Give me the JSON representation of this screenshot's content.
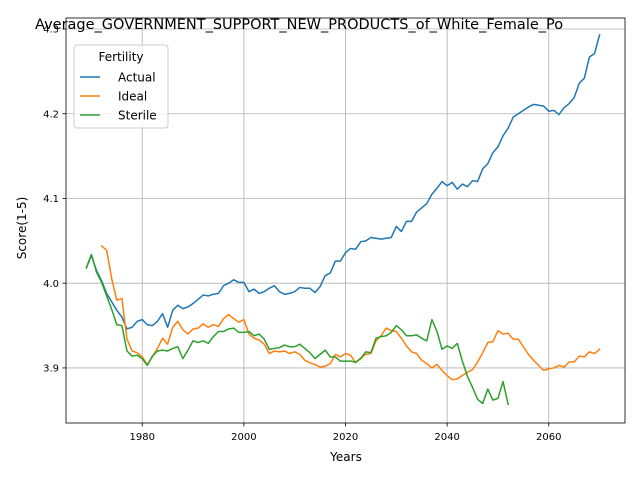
{
  "chart_data": {
    "type": "line",
    "title": "Average_GOVERNMENT_SUPPORT_NEW_PRODUCTS_of_White_Female_Po",
    "xlabel": "Years",
    "ylabel": "Score(1-5)",
    "xlim": [
      1965,
      2075
    ],
    "ylim": [
      3.835,
      4.313
    ],
    "x_ticks": [
      1980,
      2000,
      2020,
      2040,
      2060
    ],
    "y_ticks": [
      3.9,
      4.0,
      4.1,
      4.2,
      4.3
    ],
    "x_tick_labels": [
      "1980",
      "2000",
      "2020",
      "2040",
      "2060"
    ],
    "y_tick_labels": [
      "3.9",
      "4.0",
      "4.1",
      "4.2",
      "4.3"
    ],
    "grid": true,
    "legend": {
      "title": "Fertility",
      "placement": "top-left"
    },
    "series": [
      {
        "name": "Actual",
        "color": "#1f77b4",
        "points": [
          [
            1969,
            4.018
          ],
          [
            1970,
            4.033
          ],
          [
            1971,
            4.015
          ],
          [
            1972,
            4.003
          ],
          [
            1973,
            3.988
          ],
          [
            1974,
            3.978
          ],
          [
            1975,
            3.968
          ],
          [
            1976,
            3.96
          ],
          [
            1977,
            3.946
          ],
          [
            1978,
            3.948
          ],
          [
            1979,
            3.955
          ],
          [
            1980,
            3.957
          ],
          [
            1981,
            3.951
          ],
          [
            1982,
            3.95
          ],
          [
            1983,
            3.955
          ],
          [
            1984,
            3.964
          ],
          [
            1985,
            3.948
          ],
          [
            1986,
            3.968
          ],
          [
            1987,
            3.974
          ],
          [
            1988,
            3.97
          ],
          [
            1989,
            3.972
          ],
          [
            1990,
            3.976
          ],
          [
            1991,
            3.981
          ],
          [
            1992,
            3.986
          ],
          [
            1993,
            3.985
          ],
          [
            1994,
            3.987
          ],
          [
            1995,
            3.988
          ],
          [
            1996,
            3.997
          ],
          [
            1997,
            4.0
          ],
          [
            1998,
            4.004
          ],
          [
            1999,
            4.001
          ],
          [
            2000,
            4.001
          ],
          [
            2001,
            3.99
          ],
          [
            2002,
            3.993
          ],
          [
            2003,
            3.988
          ],
          [
            2004,
            3.99
          ],
          [
            2005,
            3.994
          ],
          [
            2006,
            3.997
          ],
          [
            2007,
            3.99
          ],
          [
            2008,
            3.987
          ],
          [
            2009,
            3.988
          ],
          [
            2010,
            3.99
          ],
          [
            2011,
            3.995
          ],
          [
            2012,
            3.994
          ],
          [
            2013,
            3.994
          ],
          [
            2014,
            3.989
          ],
          [
            2015,
            3.996
          ],
          [
            2016,
            4.009
          ],
          [
            2017,
            4.012
          ],
          [
            2018,
            4.026
          ],
          [
            2019,
            4.026
          ],
          [
            2020,
            4.036
          ],
          [
            2021,
            4.041
          ],
          [
            2022,
            4.04
          ],
          [
            2023,
            4.049
          ],
          [
            2024,
            4.05
          ],
          [
            2025,
            4.054
          ],
          [
            2026,
            4.053
          ],
          [
            2027,
            4.052
          ],
          [
            2028,
            4.053
          ],
          [
            2029,
            4.054
          ],
          [
            2030,
            4.067
          ],
          [
            2031,
            4.061
          ],
          [
            2032,
            4.073
          ],
          [
            2033,
            4.073
          ],
          [
            2034,
            4.084
          ],
          [
            2035,
            4.089
          ],
          [
            2036,
            4.094
          ],
          [
            2037,
            4.105
          ],
          [
            2038,
            4.112
          ],
          [
            2039,
            4.12
          ],
          [
            2040,
            4.115
          ],
          [
            2041,
            4.119
          ],
          [
            2042,
            4.111
          ],
          [
            2043,
            4.117
          ],
          [
            2044,
            4.114
          ],
          [
            2045,
            4.121
          ],
          [
            2046,
            4.12
          ],
          [
            2047,
            4.135
          ],
          [
            2048,
            4.141
          ],
          [
            2049,
            4.154
          ],
          [
            2050,
            4.161
          ],
          [
            2051,
            4.174
          ],
          [
            2052,
            4.183
          ],
          [
            2053,
            4.196
          ],
          [
            2054,
            4.2
          ],
          [
            2055,
            4.204
          ],
          [
            2056,
            4.208
          ],
          [
            2057,
            4.211
          ],
          [
            2058,
            4.21
          ],
          [
            2059,
            4.209
          ],
          [
            2060,
            4.203
          ],
          [
            2061,
            4.204
          ],
          [
            2062,
            4.199
          ],
          [
            2063,
            4.207
          ],
          [
            2064,
            4.212
          ],
          [
            2065,
            4.219
          ],
          [
            2066,
            4.236
          ],
          [
            2067,
            4.242
          ],
          [
            2068,
            4.267
          ],
          [
            2069,
            4.271
          ],
          [
            2070,
            4.293
          ]
        ]
      },
      {
        "name": "Ideal",
        "color": "#ff7f0e",
        "points": [
          [
            1972,
            4.044
          ],
          [
            1973,
            4.039
          ],
          [
            1974,
            4.005
          ],
          [
            1975,
            3.98
          ],
          [
            1976,
            3.982
          ],
          [
            1977,
            3.934
          ],
          [
            1978,
            3.92
          ],
          [
            1979,
            3.918
          ],
          [
            1980,
            3.913
          ],
          [
            1981,
            3.904
          ],
          [
            1982,
            3.913
          ],
          [
            1983,
            3.923
          ],
          [
            1984,
            3.935
          ],
          [
            1985,
            3.928
          ],
          [
            1986,
            3.948
          ],
          [
            1987,
            3.955
          ],
          [
            1988,
            3.945
          ],
          [
            1989,
            3.94
          ],
          [
            1990,
            3.946
          ],
          [
            1991,
            3.947
          ],
          [
            1992,
            3.952
          ],
          [
            1993,
            3.948
          ],
          [
            1994,
            3.951
          ],
          [
            1995,
            3.949
          ],
          [
            1996,
            3.958
          ],
          [
            1997,
            3.963
          ],
          [
            1998,
            3.958
          ],
          [
            1999,
            3.954
          ],
          [
            2000,
            3.957
          ],
          [
            2001,
            3.94
          ],
          [
            2002,
            3.935
          ],
          [
            2003,
            3.933
          ],
          [
            2004,
            3.928
          ],
          [
            2005,
            3.917
          ],
          [
            2006,
            3.92
          ],
          [
            2007,
            3.919
          ],
          [
            2008,
            3.92
          ],
          [
            2009,
            3.917
          ],
          [
            2010,
            3.919
          ],
          [
            2011,
            3.916
          ],
          [
            2012,
            3.909
          ],
          [
            2013,
            3.906
          ],
          [
            2014,
            3.904
          ],
          [
            2015,
            3.901
          ],
          [
            2016,
            3.902
          ],
          [
            2017,
            3.905
          ],
          [
            2018,
            3.916
          ],
          [
            2019,
            3.913
          ],
          [
            2020,
            3.917
          ],
          [
            2021,
            3.915
          ],
          [
            2022,
            3.906
          ],
          [
            2023,
            3.912
          ],
          [
            2024,
            3.916
          ],
          [
            2025,
            3.917
          ],
          [
            2026,
            3.932
          ],
          [
            2027,
            3.938
          ],
          [
            2028,
            3.947
          ],
          [
            2029,
            3.944
          ],
          [
            2030,
            3.943
          ],
          [
            2031,
            3.935
          ],
          [
            2032,
            3.926
          ],
          [
            2033,
            3.919
          ],
          [
            2034,
            3.917
          ],
          [
            2035,
            3.909
          ],
          [
            2036,
            3.905
          ],
          [
            2037,
            3.9
          ],
          [
            2038,
            3.904
          ],
          [
            2039,
            3.897
          ],
          [
            2040,
            3.891
          ],
          [
            2041,
            3.886
          ],
          [
            2042,
            3.887
          ],
          [
            2043,
            3.891
          ],
          [
            2044,
            3.895
          ],
          [
            2045,
            3.898
          ],
          [
            2046,
            3.907
          ],
          [
            2047,
            3.918
          ],
          [
            2048,
            3.93
          ],
          [
            2049,
            3.931
          ],
          [
            2050,
            3.944
          ],
          [
            2051,
            3.94
          ],
          [
            2052,
            3.941
          ],
          [
            2053,
            3.934
          ],
          [
            2054,
            3.934
          ],
          [
            2055,
            3.925
          ],
          [
            2056,
            3.916
          ],
          [
            2057,
            3.909
          ],
          [
            2058,
            3.903
          ],
          [
            2059,
            3.897
          ],
          [
            2060,
            3.899
          ],
          [
            2061,
            3.9
          ],
          [
            2062,
            3.903
          ],
          [
            2063,
            3.901
          ],
          [
            2064,
            3.907
          ],
          [
            2065,
            3.907
          ],
          [
            2066,
            3.914
          ],
          [
            2067,
            3.913
          ],
          [
            2068,
            3.919
          ],
          [
            2069,
            3.917
          ],
          [
            2070,
            3.922
          ]
        ]
      },
      {
        "name": "Sterile",
        "color": "#2ca02c",
        "points": [
          [
            1969,
            4.018
          ],
          [
            1970,
            4.034
          ],
          [
            1971,
            4.013
          ],
          [
            1972,
            4.001
          ],
          [
            1973,
            3.985
          ],
          [
            1974,
            3.969
          ],
          [
            1975,
            3.951
          ],
          [
            1976,
            3.95
          ],
          [
            1977,
            3.92
          ],
          [
            1978,
            3.914
          ],
          [
            1979,
            3.915
          ],
          [
            1980,
            3.911
          ],
          [
            1981,
            3.903
          ],
          [
            1982,
            3.914
          ],
          [
            1983,
            3.92
          ],
          [
            1984,
            3.921
          ],
          [
            1985,
            3.92
          ],
          [
            1986,
            3.923
          ],
          [
            1987,
            3.925
          ],
          [
            1988,
            3.911
          ],
          [
            1989,
            3.921
          ],
          [
            1990,
            3.932
          ],
          [
            1991,
            3.93
          ],
          [
            1992,
            3.932
          ],
          [
            1993,
            3.929
          ],
          [
            1994,
            3.937
          ],
          [
            1995,
            3.943
          ],
          [
            1996,
            3.943
          ],
          [
            1997,
            3.946
          ],
          [
            1998,
            3.947
          ],
          [
            1999,
            3.942
          ],
          [
            2000,
            3.942
          ],
          [
            2001,
            3.943
          ],
          [
            2002,
            3.938
          ],
          [
            2003,
            3.94
          ],
          [
            2004,
            3.934
          ],
          [
            2005,
            3.922
          ],
          [
            2006,
            3.923
          ],
          [
            2007,
            3.924
          ],
          [
            2008,
            3.927
          ],
          [
            2009,
            3.925
          ],
          [
            2010,
            3.925
          ],
          [
            2011,
            3.928
          ],
          [
            2012,
            3.923
          ],
          [
            2013,
            3.918
          ],
          [
            2014,
            3.911
          ],
          [
            2015,
            3.916
          ],
          [
            2016,
            3.921
          ],
          [
            2017,
            3.913
          ],
          [
            2018,
            3.913
          ],
          [
            2019,
            3.908
          ],
          [
            2020,
            3.908
          ],
          [
            2021,
            3.908
          ],
          [
            2022,
            3.907
          ],
          [
            2023,
            3.911
          ],
          [
            2024,
            3.919
          ],
          [
            2025,
            3.918
          ],
          [
            2026,
            3.935
          ],
          [
            2027,
            3.937
          ],
          [
            2028,
            3.938
          ],
          [
            2029,
            3.942
          ],
          [
            2030,
            3.95
          ],
          [
            2031,
            3.945
          ],
          [
            2032,
            3.938
          ],
          [
            2033,
            3.938
          ],
          [
            2034,
            3.939
          ],
          [
            2035,
            3.935
          ],
          [
            2036,
            3.932
          ],
          [
            2037,
            3.957
          ],
          [
            2038,
            3.943
          ],
          [
            2039,
            3.922
          ],
          [
            2040,
            3.926
          ],
          [
            2041,
            3.923
          ],
          [
            2042,
            3.929
          ],
          [
            2043,
            3.908
          ],
          [
            2044,
            3.89
          ],
          [
            2045,
            3.877
          ],
          [
            2046,
            3.863
          ],
          [
            2047,
            3.858
          ],
          [
            2048,
            3.875
          ],
          [
            2049,
            3.862
          ],
          [
            2050,
            3.864
          ],
          [
            2051,
            3.884
          ],
          [
            2052,
            3.857
          ]
        ]
      }
    ]
  }
}
